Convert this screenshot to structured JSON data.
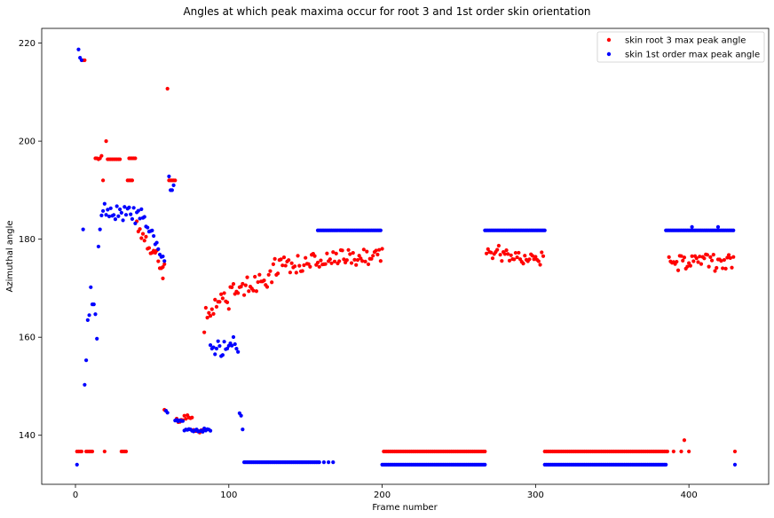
{
  "chart_data": {
    "type": "scatter",
    "title": "Angles at which peak maxima occur for root 3 and 1st order skin orientation",
    "xlabel": "Frame number",
    "ylabel": "Azimuthal angle",
    "xlim": [
      -22,
      452
    ],
    "ylim": [
      130,
      223
    ],
    "xticks": [
      0,
      100,
      200,
      300,
      400
    ],
    "yticks": [
      140,
      160,
      180,
      200,
      220
    ],
    "legend_position": "top-right",
    "grid": false,
    "series": [
      {
        "name": "skin root 3 max peak angle",
        "color": "#ff0000",
        "segments": [
          {
            "type": "const",
            "from": 1,
            "to": 11,
            "value": 136.7,
            "skip": [
              5,
              6
            ]
          },
          {
            "type": "points",
            "x": [
              5,
              6,
              13,
              14,
              15,
              16,
              17,
              18,
              19,
              20
            ],
            "y": [
              216.5,
              216.5,
              196.5,
              196.5,
              196.3,
              196.5,
              197,
              192,
              136.7,
              200
            ]
          },
          {
            "type": "const",
            "from": 21,
            "to": 29,
            "value": 196.3
          },
          {
            "type": "points",
            "x": [
              30,
              31,
              32,
              33
            ],
            "y": [
              136.7,
              136.7,
              136.7,
              136.7
            ]
          },
          {
            "type": "const",
            "from": 34,
            "to": 37,
            "value": 192
          },
          {
            "type": "points",
            "x": [
              35,
              36,
              37,
              38,
              39
            ],
            "y": [
              196.5,
              196.5,
              196.5,
              196.5,
              196.5
            ]
          },
          {
            "type": "linear",
            "from": 40,
            "to": 58,
            "start": 183,
            "end": 174,
            "amp": 1.5,
            "seed": 1
          },
          {
            "type": "points",
            "x": [
              57,
              58,
              59,
              60,
              61,
              62,
              63,
              64,
              65
            ],
            "y": [
              172,
              145.2,
              145,
              210.7,
              192,
              192,
              192,
              192,
              192
            ]
          },
          {
            "type": "linear",
            "from": 66,
            "to": 76,
            "start": 143,
            "end": 144,
            "amp": 0.5,
            "seed": 2
          },
          {
            "type": "const",
            "from": 77,
            "to": 83,
            "value": 140.8,
            "amp": 0.3,
            "seed": 3
          },
          {
            "type": "points",
            "x": [
              84,
              85,
              86
            ],
            "y": [
              161,
              166,
              164
            ]
          },
          {
            "type": "linear",
            "from": 87,
            "to": 130,
            "start": 166,
            "end": 173.5,
            "amp": 2.5,
            "seed": 4
          },
          {
            "type": "linear",
            "from": 131,
            "to": 200,
            "start": 174.5,
            "end": 177,
            "amp": 1.8,
            "seed": 5
          },
          {
            "type": "const",
            "from": 201,
            "to": 267,
            "value": 136.7
          },
          {
            "type": "linear",
            "from": 268,
            "to": 305,
            "start": 177.5,
            "end": 176,
            "amp": 1.6,
            "seed": 6
          },
          {
            "type": "const",
            "from": 306,
            "to": 386,
            "value": 136.7
          },
          {
            "type": "linear",
            "from": 387,
            "to": 429,
            "start": 175.5,
            "end": 175,
            "amp": 1.8,
            "seed": 7
          },
          {
            "type": "points",
            "x": [
              390,
              395,
              397,
              400,
              430
            ],
            "y": [
              136.7,
              136.7,
              139,
              136.7,
              136.7
            ]
          }
        ]
      },
      {
        "name": "skin 1st order max peak angle",
        "color": "#0000ff",
        "segments": [
          {
            "type": "points",
            "x": [
              1,
              2,
              3,
              4,
              5,
              6,
              7,
              8,
              9,
              10,
              11,
              12,
              13,
              14,
              15,
              16
            ],
            "y": [
              134,
              218.7,
              217,
              216.5,
              182,
              150.3,
              155.3,
              163.5,
              164.5,
              170.2,
              166.7,
              166.7,
              164.7,
              159.7,
              178.5,
              182
            ]
          },
          {
            "type": "linear",
            "from": 17,
            "to": 45,
            "start": 186,
            "end": 184.5,
            "amp": 1.8,
            "seed": 8
          },
          {
            "type": "linear",
            "from": 46,
            "to": 58,
            "start": 183.5,
            "end": 175.5,
            "amp": 1,
            "seed": 9
          },
          {
            "type": "points",
            "x": [
              59,
              60,
              61,
              62,
              63,
              64,
              65
            ],
            "y": [
              145,
              144.6,
              192.8,
              190,
              190,
              191,
              143
            ]
          },
          {
            "type": "const",
            "from": 66,
            "to": 70,
            "value": 143,
            "amp": 0.3,
            "seed": 10
          },
          {
            "type": "const",
            "from": 71,
            "to": 88,
            "value": 141,
            "amp": 0.4,
            "seed": 11
          },
          {
            "type": "linear",
            "from": 88,
            "to": 106,
            "start": 157,
            "end": 158.5,
            "amp": 1.8,
            "seed": 12
          },
          {
            "type": "points",
            "x": [
              107,
              108,
              109,
              110
            ],
            "y": [
              144.5,
              144,
              141.2,
              134.5
            ]
          },
          {
            "type": "const",
            "from": 111,
            "to": 159,
            "value": 134.5
          },
          {
            "type": "points",
            "x": [
              162,
              165,
              168
            ],
            "y": [
              134.5,
              134.5,
              134.5
            ]
          },
          {
            "type": "const",
            "from": 158,
            "to": 199,
            "value": 181.8
          },
          {
            "type": "const",
            "from": 200,
            "to": 267,
            "value": 134
          },
          {
            "type": "const",
            "from": 267,
            "to": 306,
            "value": 181.8
          },
          {
            "type": "const",
            "from": 306,
            "to": 385,
            "value": 134
          },
          {
            "type": "const",
            "from": 385,
            "to": 429,
            "value": 181.8
          },
          {
            "type": "points",
            "x": [
              402,
              419,
              430
            ],
            "y": [
              182.5,
              182.5,
              134
            ]
          }
        ]
      }
    ]
  }
}
